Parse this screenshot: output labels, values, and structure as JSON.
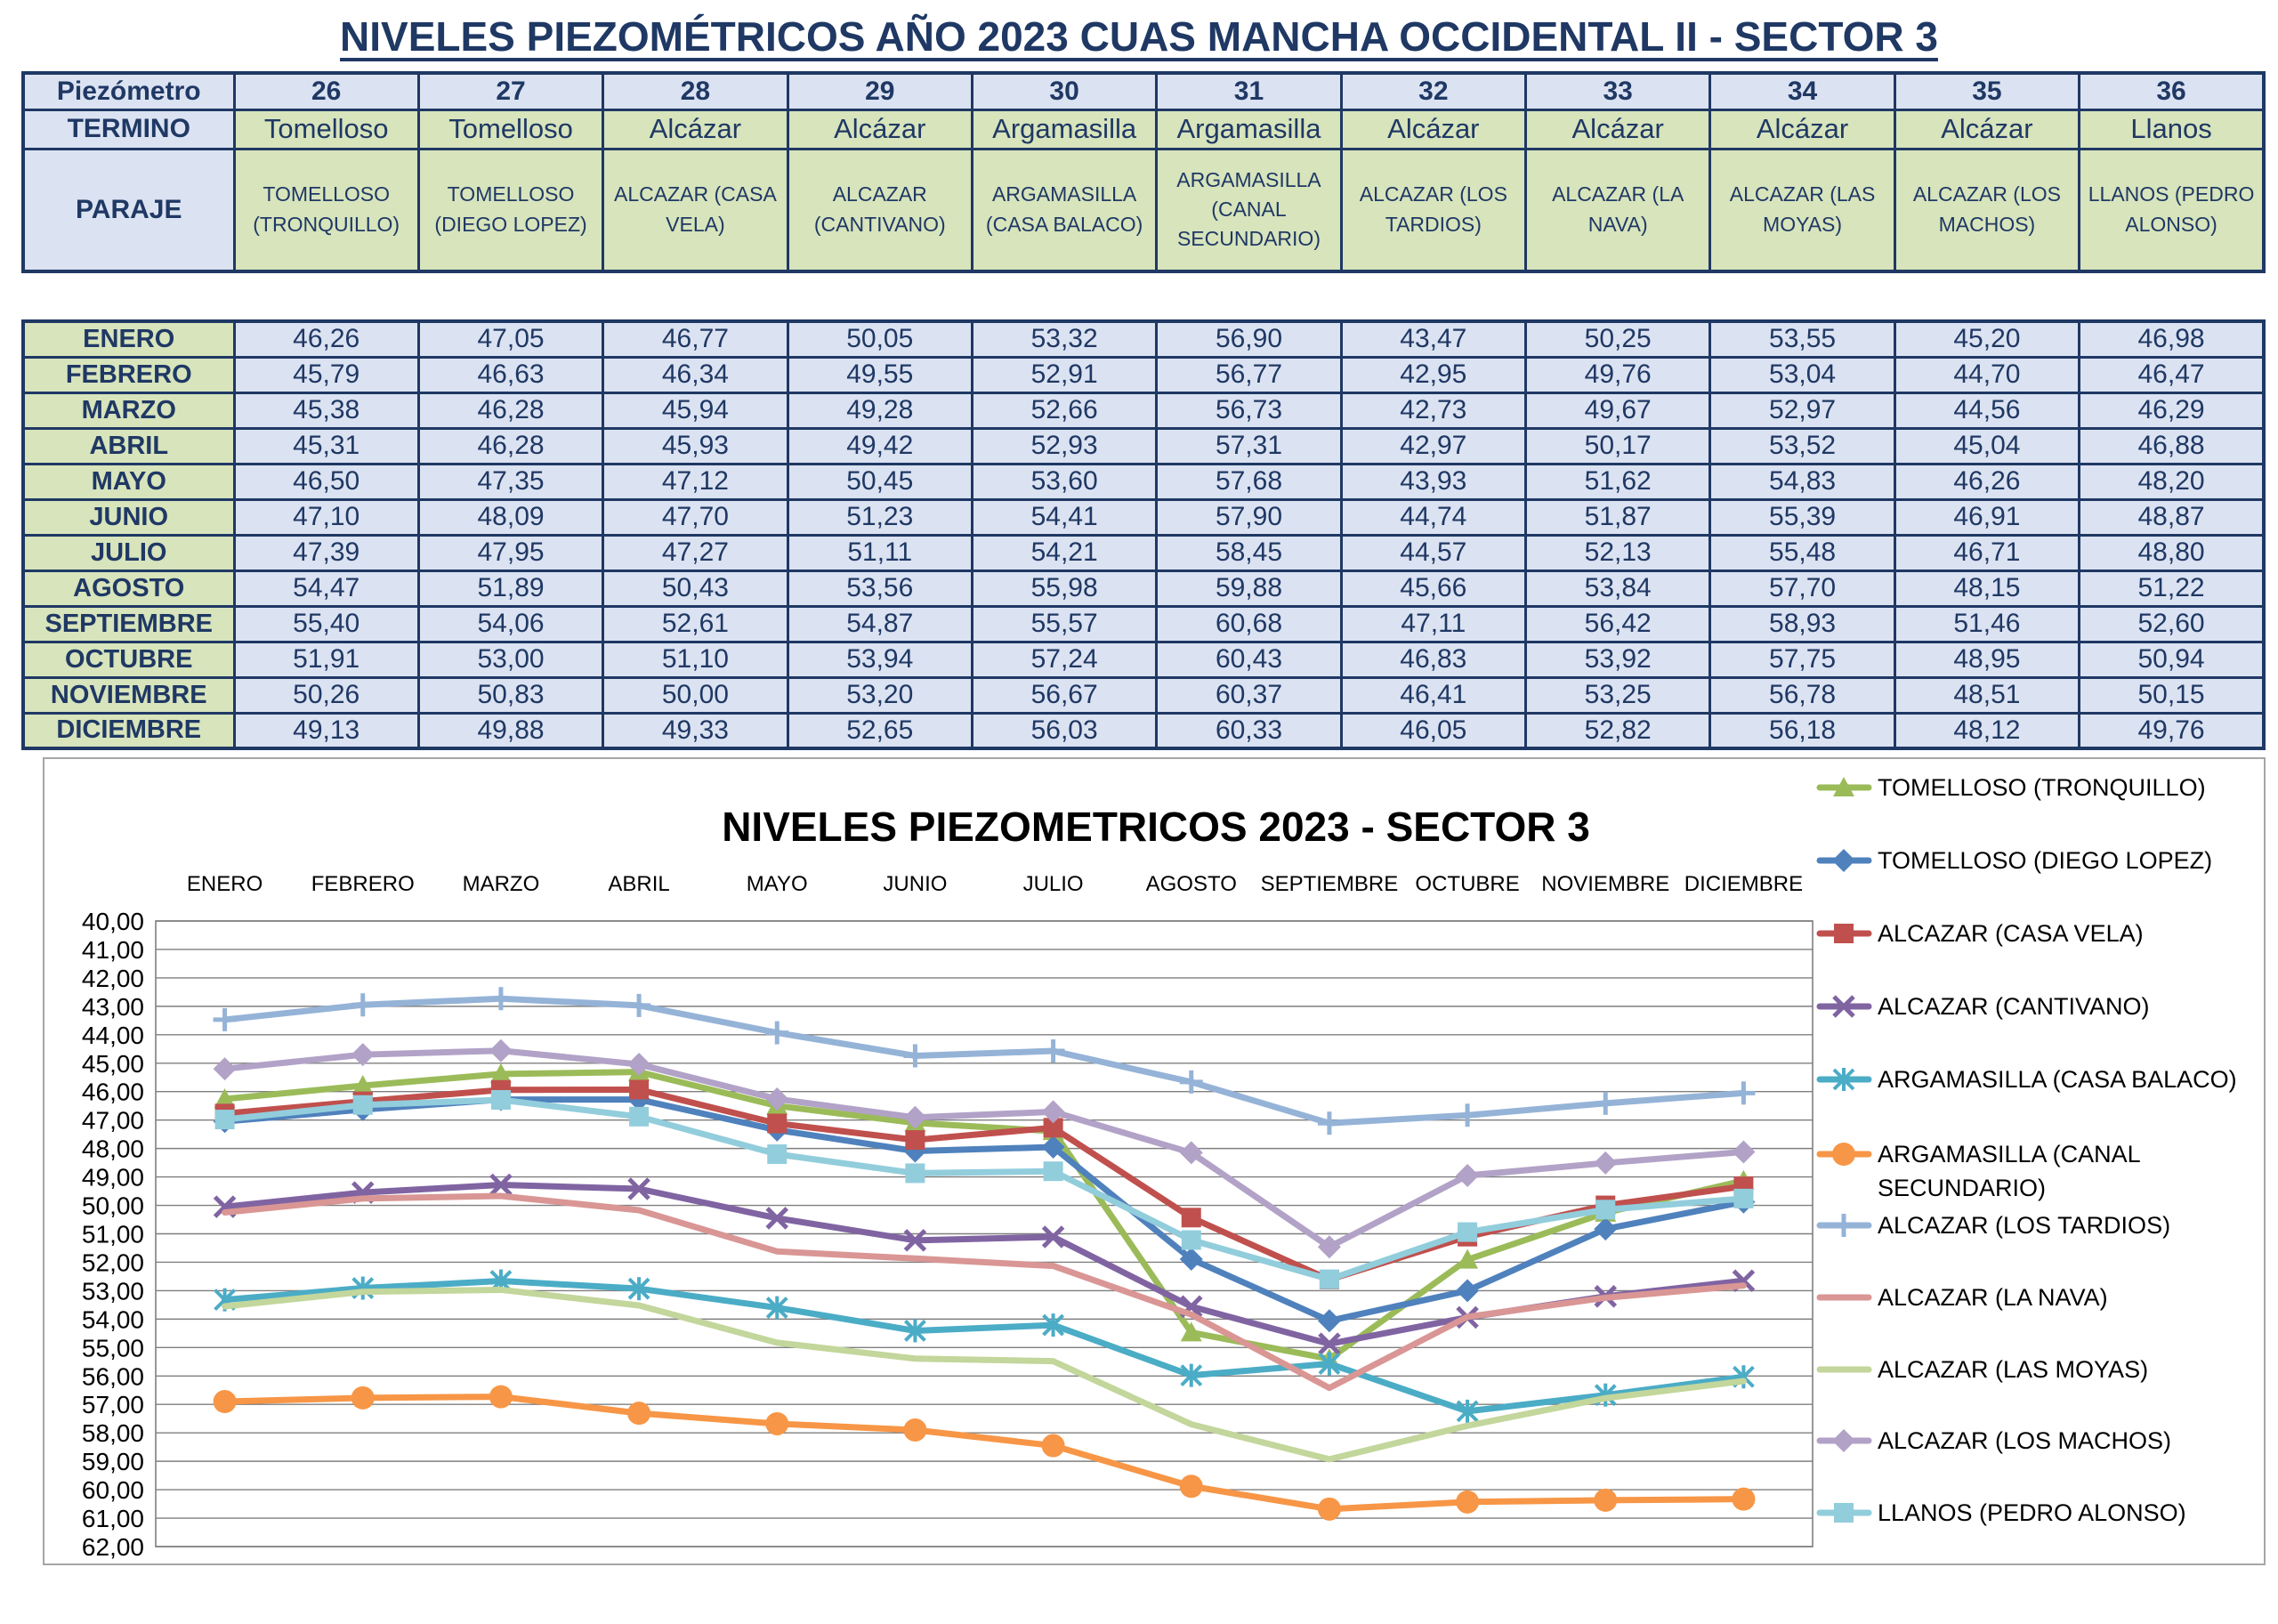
{
  "page_title": "NIVELES PIEZOMÉTRICOS AÑO 2023 CUAS MANCHA OCCIDENTAL II - SECTOR 3",
  "colors": {
    "table_border": "#1F3864",
    "text_navy": "#1F3864",
    "cell_lavender": "#DBE2F1",
    "cell_green": "#D7E4BC",
    "grid_gray": "#7F7F7F"
  },
  "header_table": {
    "row1_label": "Piezómetro",
    "row2_label": "TERMINO",
    "row3_label": "PARAJE",
    "piezometros": [
      "26",
      "27",
      "28",
      "29",
      "30",
      "31",
      "32",
      "33",
      "34",
      "35",
      "36"
    ],
    "terminos": [
      "Tomelloso",
      "Tomelloso",
      "Alcázar",
      "Alcázar",
      "Argamasilla",
      "Argamasilla",
      "Alcázar",
      "Alcázar",
      "Alcázar",
      "Alcázar",
      "Llanos"
    ],
    "parajes": [
      "TOMELLOSO (TRONQUILLO)",
      "TOMELLOSO (DIEGO LOPEZ)",
      "ALCAZAR (CASA VELA)",
      "ALCAZAR (CANTIVANO)",
      "ARGAMASILLA (CASA BALACO)",
      "ARGAMASILLA (CANAL SECUNDARIO)",
      "ALCAZAR (LOS TARDIOS)",
      "ALCAZAR (LA NAVA)",
      "ALCAZAR (LAS MOYAS)",
      "ALCAZAR (LOS MACHOS)",
      "LLANOS (PEDRO ALONSO)"
    ]
  },
  "data_table": {
    "months": [
      "ENERO",
      "FEBRERO",
      "MARZO",
      "ABRIL",
      "MAYO",
      "JUNIO",
      "JULIO",
      "AGOSTO",
      "SEPTIEMBRE",
      "OCTUBRE",
      "NOVIEMBRE",
      "DICIEMBRE"
    ],
    "values": [
      [
        "46,26",
        "47,05",
        "46,77",
        "50,05",
        "53,32",
        "56,90",
        "43,47",
        "50,25",
        "53,55",
        "45,20",
        "46,98"
      ],
      [
        "45,79",
        "46,63",
        "46,34",
        "49,55",
        "52,91",
        "56,77",
        "42,95",
        "49,76",
        "53,04",
        "44,70",
        "46,47"
      ],
      [
        "45,38",
        "46,28",
        "45,94",
        "49,28",
        "52,66",
        "56,73",
        "42,73",
        "49,67",
        "52,97",
        "44,56",
        "46,29"
      ],
      [
        "45,31",
        "46,28",
        "45,93",
        "49,42",
        "52,93",
        "57,31",
        "42,97",
        "50,17",
        "53,52",
        "45,04",
        "46,88"
      ],
      [
        "46,50",
        "47,35",
        "47,12",
        "50,45",
        "53,60",
        "57,68",
        "43,93",
        "51,62",
        "54,83",
        "46,26",
        "48,20"
      ],
      [
        "47,10",
        "48,09",
        "47,70",
        "51,23",
        "54,41",
        "57,90",
        "44,74",
        "51,87",
        "55,39",
        "46,91",
        "48,87"
      ],
      [
        "47,39",
        "47,95",
        "47,27",
        "51,11",
        "54,21",
        "58,45",
        "44,57",
        "52,13",
        "55,48",
        "46,71",
        "48,80"
      ],
      [
        "54,47",
        "51,89",
        "50,43",
        "53,56",
        "55,98",
        "59,88",
        "45,66",
        "53,84",
        "57,70",
        "48,15",
        "51,22"
      ],
      [
        "55,40",
        "54,06",
        "52,61",
        "54,87",
        "55,57",
        "60,68",
        "47,11",
        "56,42",
        "58,93",
        "51,46",
        "52,60"
      ],
      [
        "51,91",
        "53,00",
        "51,10",
        "53,94",
        "57,24",
        "60,43",
        "46,83",
        "53,92",
        "57,75",
        "48,95",
        "50,94"
      ],
      [
        "50,26",
        "50,83",
        "50,00",
        "53,20",
        "56,67",
        "60,37",
        "46,41",
        "53,25",
        "56,78",
        "48,51",
        "50,15"
      ],
      [
        "49,13",
        "49,88",
        "49,33",
        "52,65",
        "56,03",
        "60,33",
        "46,05",
        "52,82",
        "56,18",
        "48,12",
        "49,76"
      ]
    ]
  },
  "chart_data": {
    "type": "line",
    "title": "NIVELES PIEZOMETRICOS 2023 - SECTOR 3",
    "categories": [
      "ENERO",
      "FEBRERO",
      "MARZO",
      "ABRIL",
      "MAYO",
      "JUNIO",
      "JULIO",
      "AGOSTO",
      "SEPTIEMBRE",
      "OCTUBRE",
      "NOVIEMBRE",
      "DICIEMBRE"
    ],
    "y_axis": {
      "min": 40,
      "max": 62,
      "step": 1,
      "inverted": true,
      "ticks": [
        "40,00",
        "41,00",
        "42,00",
        "43,00",
        "44,00",
        "45,00",
        "46,00",
        "47,00",
        "48,00",
        "49,00",
        "50,00",
        "51,00",
        "52,00",
        "53,00",
        "54,00",
        "55,00",
        "56,00",
        "57,00",
        "58,00",
        "59,00",
        "60,00",
        "61,00",
        "62,00"
      ]
    },
    "grid": true,
    "legend_position": "right",
    "series": [
      {
        "name": "TOMELLOSO (TRONQUILLO)",
        "color": "#9BBB59",
        "marker": "triangle",
        "values": [
          46.26,
          45.79,
          45.38,
          45.31,
          46.5,
          47.1,
          47.39,
          54.47,
          55.4,
          51.91,
          50.26,
          49.13
        ]
      },
      {
        "name": "TOMELLOSO (DIEGO LOPEZ)",
        "color": "#4F81BD",
        "marker": "diamond",
        "values": [
          47.05,
          46.63,
          46.28,
          46.28,
          47.35,
          48.09,
          47.95,
          51.89,
          54.06,
          53.0,
          50.83,
          49.88
        ]
      },
      {
        "name": "ALCAZAR (CASA VELA)",
        "color": "#C0504D",
        "marker": "square",
        "values": [
          46.77,
          46.34,
          45.94,
          45.93,
          47.12,
          47.7,
          47.27,
          50.43,
          52.61,
          51.1,
          50.0,
          49.33
        ]
      },
      {
        "name": "ALCAZAR (CANTIVANO)",
        "color": "#8064A2",
        "marker": "x",
        "values": [
          50.05,
          49.55,
          49.28,
          49.42,
          50.45,
          51.23,
          51.11,
          53.56,
          54.87,
          53.94,
          53.2,
          52.65
        ]
      },
      {
        "name": "ARGAMASILLA (CASA BALACO)",
        "color": "#4BACC6",
        "marker": "asterisk",
        "values": [
          53.32,
          52.91,
          52.66,
          52.93,
          53.6,
          54.41,
          54.21,
          55.98,
          55.57,
          57.24,
          56.67,
          56.03
        ]
      },
      {
        "name": "ARGAMASILLA (CANAL SECUNDARIO)",
        "color": "#F79646",
        "marker": "circle",
        "values": [
          56.9,
          56.77,
          56.73,
          57.31,
          57.68,
          57.9,
          58.45,
          59.88,
          60.68,
          60.43,
          60.37,
          60.33
        ]
      },
      {
        "name": "ALCAZAR (LOS TARDIOS)",
        "color": "#95B3D7",
        "marker": "plus",
        "values": [
          43.47,
          42.95,
          42.73,
          42.97,
          43.93,
          44.74,
          44.57,
          45.66,
          47.11,
          46.83,
          46.41,
          46.05
        ]
      },
      {
        "name": "ALCAZAR (LA NAVA)",
        "color": "#D99694",
        "marker": "none",
        "values": [
          50.25,
          49.76,
          49.67,
          50.17,
          51.62,
          51.87,
          52.13,
          53.84,
          56.42,
          53.92,
          53.25,
          52.82
        ]
      },
      {
        "name": "ALCAZAR (LAS MOYAS)",
        "color": "#C3D69B",
        "marker": "none",
        "values": [
          53.55,
          53.04,
          52.97,
          53.52,
          54.83,
          55.39,
          55.48,
          57.7,
          58.93,
          57.75,
          56.78,
          56.18
        ]
      },
      {
        "name": "ALCAZAR (LOS MACHOS)",
        "color": "#B2A2C7",
        "marker": "diamond",
        "values": [
          45.2,
          44.7,
          44.56,
          45.04,
          46.26,
          46.91,
          46.71,
          48.15,
          51.46,
          48.95,
          48.51,
          48.12
        ]
      },
      {
        "name": "LLANOS (PEDRO ALONSO)",
        "color": "#92CDDC",
        "marker": "square",
        "values": [
          46.98,
          46.47,
          46.29,
          46.88,
          48.2,
          48.87,
          48.8,
          51.22,
          52.6,
          50.94,
          50.15,
          49.76
        ]
      }
    ]
  }
}
